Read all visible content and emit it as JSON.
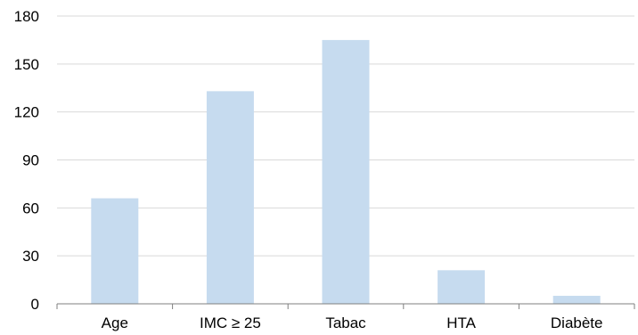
{
  "chart_data": {
    "type": "bar",
    "title": "",
    "xlabel": "",
    "ylabel": "",
    "categories": [
      "Age",
      "IMC ≥ 25",
      "Tabac",
      "HTA",
      "Diabète"
    ],
    "series": [
      {
        "values": [
          66,
          133,
          165,
          21,
          5
        ]
      }
    ],
    "ylim": [
      0,
      180
    ],
    "yticks": [
      0,
      30,
      60,
      90,
      120,
      150,
      180
    ],
    "ytick_labels": [
      "0",
      "30",
      "60",
      "90",
      "120",
      "150",
      "180"
    ],
    "grid": true,
    "legend": "none",
    "colors": {
      "bar": "#c6dbef",
      "grid": "#d9d9d9",
      "axis": "#7f7f7f",
      "text": "#000000"
    }
  }
}
